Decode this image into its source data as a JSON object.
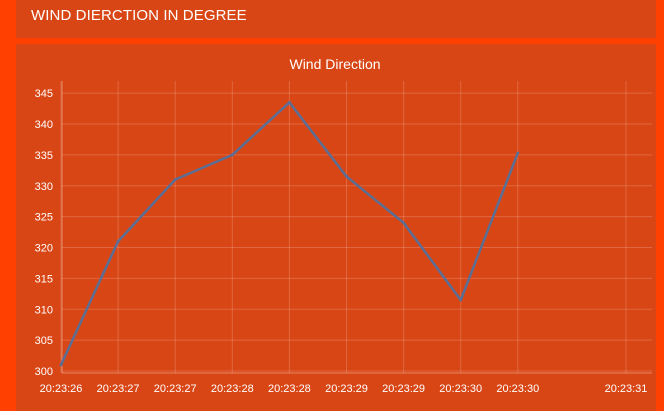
{
  "header": {
    "title": "WIND DIERCTION IN DEGREE"
  },
  "colors": {
    "background": "#ff4000",
    "panel": "#d94615",
    "line": "#5b6f96",
    "text": "#ffffff"
  },
  "chart_data": {
    "type": "line",
    "title": "Wind Direction",
    "xlabel": "",
    "ylabel": "",
    "x_tick_labels": [
      "20:23:26",
      "20:23:27",
      "20:23:27",
      "20:23:28",
      "20:23:28",
      "20:23:29",
      "20:23:29",
      "20:23:30",
      "20:23:30",
      "20:23:31"
    ],
    "y_ticks": [
      300,
      305,
      310,
      315,
      320,
      325,
      330,
      335,
      340,
      345
    ],
    "ylim": [
      300,
      346
    ],
    "grid": true,
    "legend": "none",
    "series": [
      {
        "values": [
          301,
          321,
          331,
          335,
          343.5,
          331.5,
          324,
          311.5,
          335.3
        ]
      }
    ]
  }
}
